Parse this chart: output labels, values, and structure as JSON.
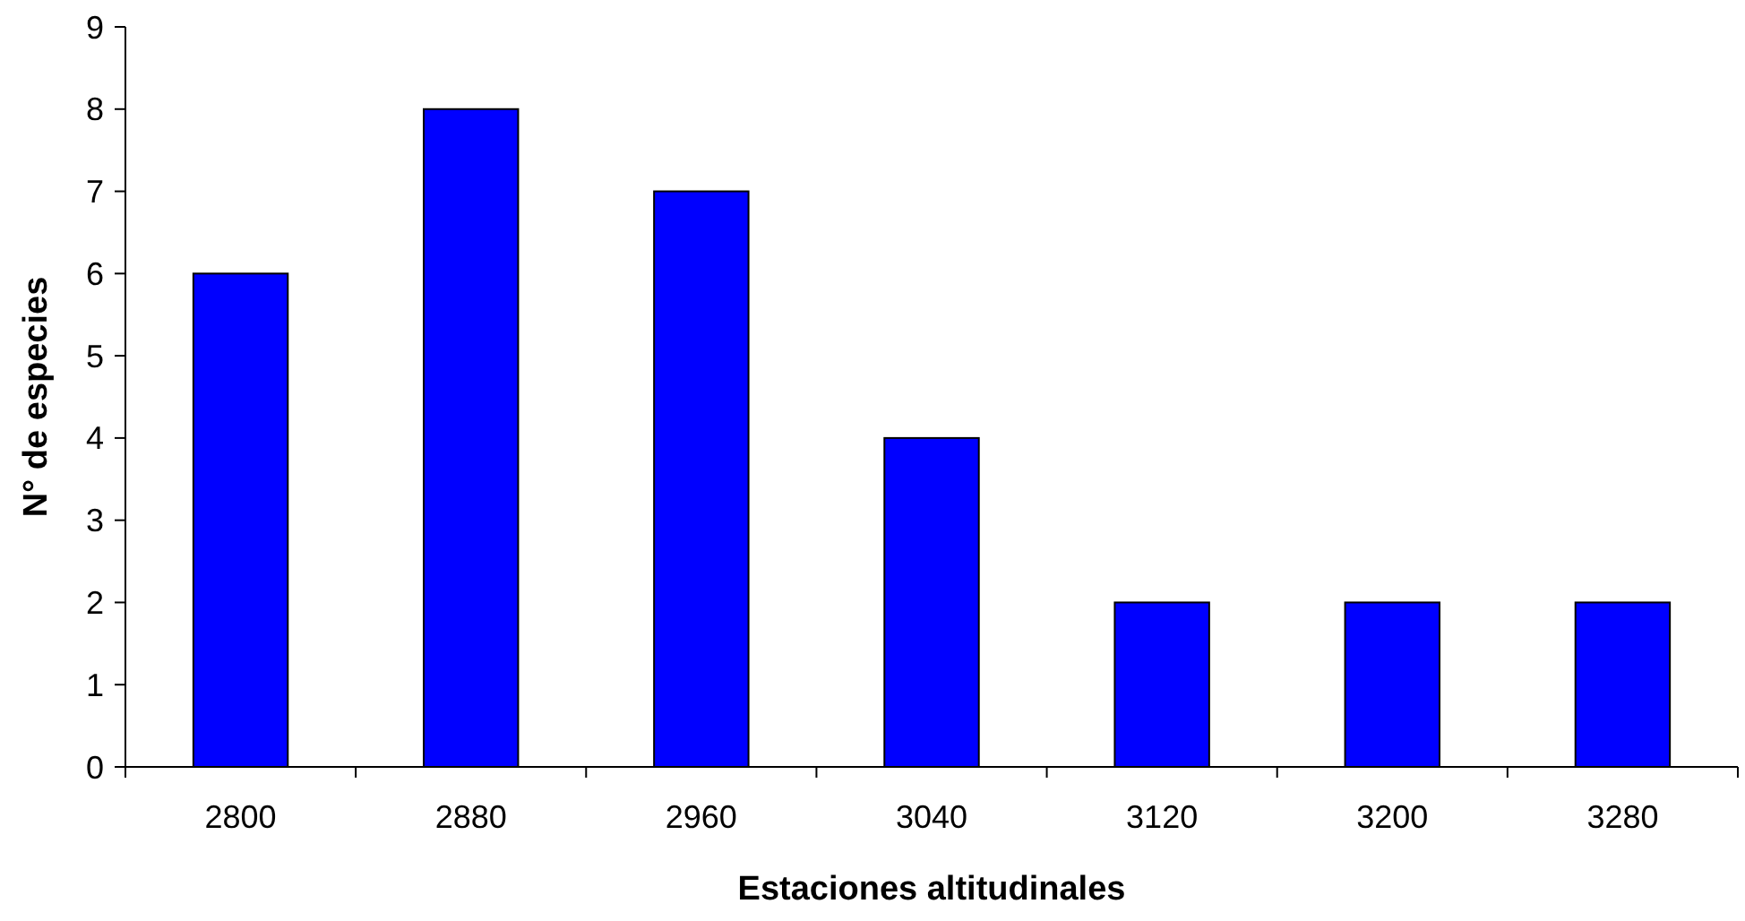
{
  "chart_data": {
    "type": "bar",
    "xlabel": "Estaciones altitudinales",
    "ylabel": "N° de especies",
    "categories": [
      "2800",
      "2880",
      "2960",
      "3040",
      "3120",
      "3200",
      "3280"
    ],
    "values": [
      6,
      8,
      7,
      4,
      2,
      2,
      2
    ],
    "color": "#0000ff",
    "ylim": [
      0,
      9
    ],
    "yticks": [
      0,
      1,
      2,
      3,
      4,
      5,
      6,
      7,
      8,
      9
    ]
  }
}
